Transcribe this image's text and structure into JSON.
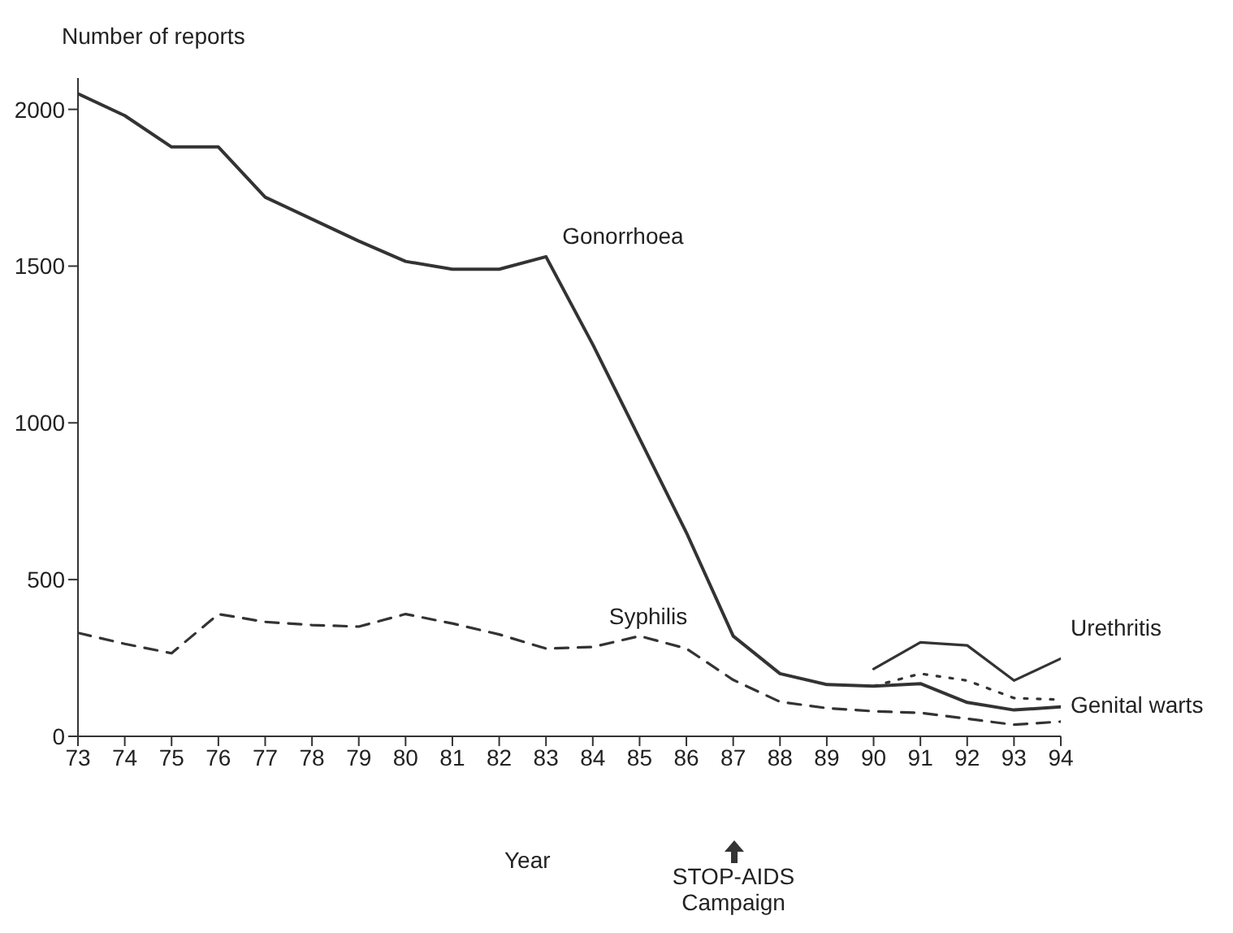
{
  "chart_data": {
    "type": "line",
    "ylabel": "Number of reports",
    "xlabel": "Year",
    "x": [
      73,
      74,
      75,
      76,
      77,
      78,
      79,
      80,
      81,
      82,
      83,
      84,
      85,
      86,
      87,
      88,
      89,
      90,
      91,
      92,
      93,
      94
    ],
    "xlim": [
      73,
      94
    ],
    "xticks": [
      73,
      74,
      75,
      76,
      77,
      78,
      79,
      80,
      81,
      82,
      83,
      84,
      85,
      86,
      87,
      88,
      89,
      90,
      91,
      92,
      93,
      94
    ],
    "ylim": [
      0,
      2100
    ],
    "yticks": [
      0,
      500,
      1000,
      1500,
      2000
    ],
    "grid": false,
    "legend": false,
    "marker": "none",
    "series": [
      {
        "name": "Gonorrhoea",
        "color": "#333333",
        "line_style": "solid",
        "values": [
          2050,
          1980,
          1880,
          1880,
          1720,
          1650,
          1580,
          1515,
          1490,
          1490,
          1530,
          1250,
          950,
          650,
          320,
          200,
          165,
          160,
          168,
          108,
          84,
          94
        ]
      },
      {
        "name": "Syphilis",
        "color": "#333333",
        "line_style": "dashed",
        "values": [
          330,
          295,
          265,
          390,
          365,
          355,
          350,
          390,
          360,
          325,
          280,
          285,
          320,
          280,
          180,
          110,
          90,
          80,
          75,
          56,
          37,
          47
        ]
      },
      {
        "name": "Urethritis",
        "color": "#333333",
        "line_style": "solid",
        "values": [
          null,
          null,
          null,
          null,
          null,
          null,
          null,
          null,
          null,
          null,
          null,
          null,
          null,
          null,
          null,
          null,
          null,
          215,
          300,
          290,
          178,
          248
        ]
      },
      {
        "name": "Genital warts",
        "color": "#333333",
        "line_style": "dotted",
        "values": [
          null,
          null,
          null,
          null,
          null,
          null,
          null,
          null,
          null,
          null,
          null,
          null,
          null,
          null,
          null,
          null,
          null,
          160,
          200,
          178,
          122,
          117
        ]
      }
    ],
    "annotations": [
      "STOP-AIDS Campaign"
    ]
  }
}
